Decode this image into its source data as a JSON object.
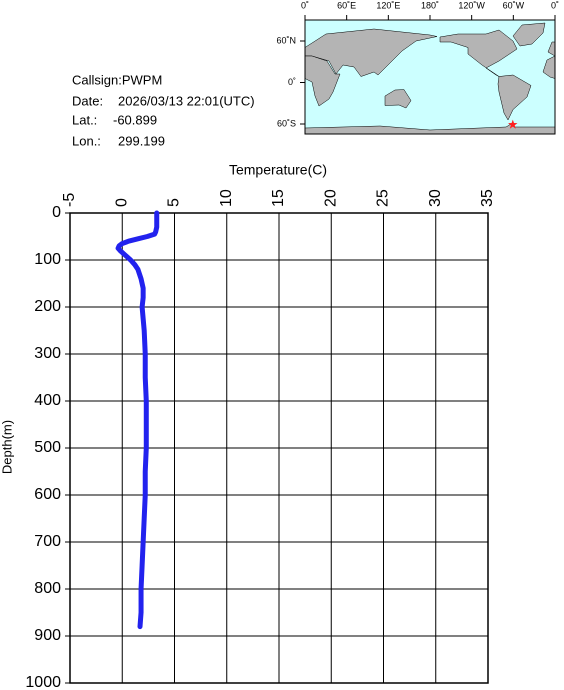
{
  "info": {
    "callsign": "Callsign:PWPM",
    "date_label": "Date:",
    "date": "2026/03/13 22:01(UTC)",
    "lat_label": "Lat.:",
    "lat": -60.899,
    "lon_label": "Lon.:",
    "lon": 299.199
  },
  "map": {
    "lon_ticks": [
      {
        "value": 0,
        "label": "0˚"
      },
      {
        "value": 60,
        "label": "60˚E"
      },
      {
        "value": 120,
        "label": "120˚E"
      },
      {
        "value": 180,
        "label": "180˚"
      },
      {
        "value": 240,
        "label": "120˚W"
      },
      {
        "value": 300,
        "label": "60˚W"
      },
      {
        "value": 360,
        "label": "0˚"
      }
    ],
    "lat_ticks": [
      {
        "value": 60,
        "label": "60˚N"
      },
      {
        "value": 0,
        "label": "0˚"
      },
      {
        "value": -60,
        "label": "60˚S"
      }
    ],
    "marker_color": "#ff2020"
  },
  "chart_data": {
    "type": "line",
    "title": "Temperature(C)",
    "y_label": "Depth(m)",
    "color": "#2222ee",
    "depth": [
      0,
      10,
      20,
      30,
      40,
      45,
      50,
      55,
      60,
      65,
      70,
      75,
      80,
      90,
      100,
      110,
      120,
      140,
      160,
      180,
      200,
      250,
      300,
      350,
      400,
      450,
      500,
      550,
      600,
      650,
      700,
      750,
      800,
      850,
      880
    ],
    "values": [
      3.3,
      3.3,
      3.3,
      3.3,
      3.2,
      3.1,
      2.4,
      1.5,
      0.6,
      0.0,
      -0.3,
      -0.4,
      -0.2,
      0.3,
      0.8,
      1.2,
      1.5,
      1.8,
      2.0,
      2.0,
      1.9,
      2.1,
      2.2,
      2.2,
      2.3,
      2.3,
      2.3,
      2.2,
      2.2,
      2.1,
      2.0,
      1.9,
      1.8,
      1.8,
      1.7
    ],
    "xlim": [
      -5,
      35
    ],
    "xticks": [
      -5,
      0,
      5,
      10,
      15,
      20,
      25,
      30,
      35
    ],
    "ylim": [
      0,
      1000
    ],
    "yticks": [
      0,
      100,
      200,
      300,
      400,
      500,
      600,
      700,
      800,
      900,
      1000
    ],
    "y_inverted": true,
    "grid": true
  }
}
